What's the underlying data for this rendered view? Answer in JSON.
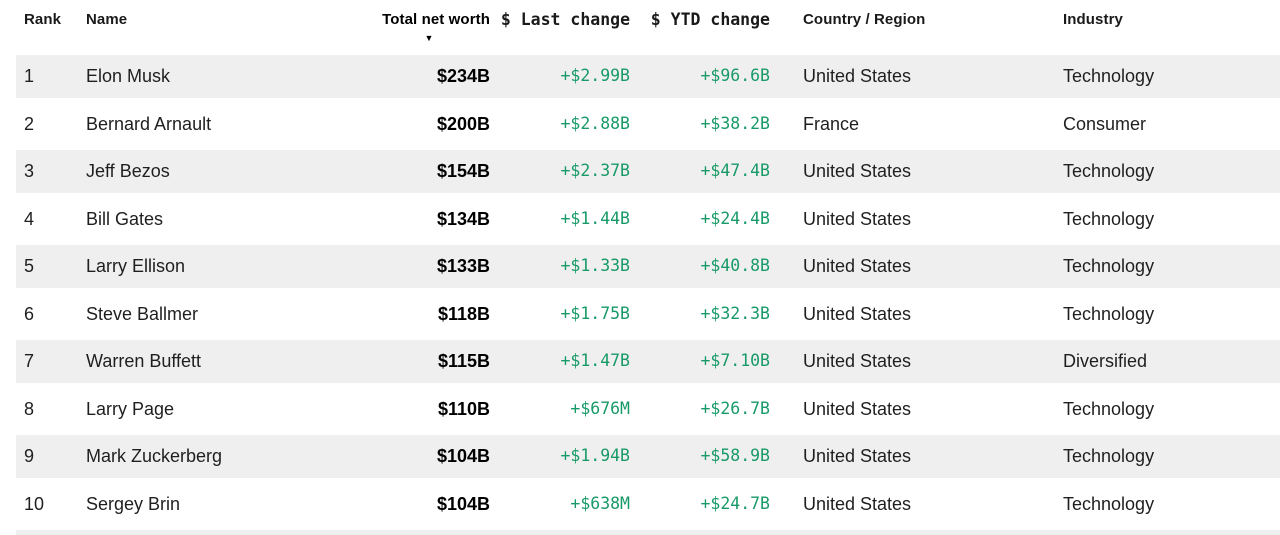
{
  "colors": {
    "positive_change": "#189a68",
    "row_alt_background": "#efefef",
    "header_text": "#000000",
    "body_text": "#1f1f1f"
  },
  "table": {
    "sort_icon": "▼",
    "sorted_column": "Total net worth",
    "columns": [
      {
        "key": "rank",
        "label": "Rank"
      },
      {
        "key": "name",
        "label": "Name"
      },
      {
        "key": "net_worth",
        "label": "Total net worth"
      },
      {
        "key": "last_change",
        "label": "$ Last change"
      },
      {
        "key": "ytd_change",
        "label": "$ YTD change"
      },
      {
        "key": "country",
        "label": "Country / Region"
      },
      {
        "key": "industry",
        "label": "Industry"
      }
    ],
    "rows": [
      {
        "rank": "1",
        "name": "Elon Musk",
        "net_worth": "$234B",
        "last_change": "+$2.99B",
        "ytd_change": "+$96.6B",
        "country": "United States",
        "industry": "Technology"
      },
      {
        "rank": "2",
        "name": "Bernard Arnault",
        "net_worth": "$200B",
        "last_change": "+$2.88B",
        "ytd_change": "+$38.2B",
        "country": "France",
        "industry": "Consumer"
      },
      {
        "rank": "3",
        "name": "Jeff Bezos",
        "net_worth": "$154B",
        "last_change": "+$2.37B",
        "ytd_change": "+$47.4B",
        "country": "United States",
        "industry": "Technology"
      },
      {
        "rank": "4",
        "name": "Bill Gates",
        "net_worth": "$134B",
        "last_change": "+$1.44B",
        "ytd_change": "+$24.4B",
        "country": "United States",
        "industry": "Technology"
      },
      {
        "rank": "5",
        "name": "Larry Ellison",
        "net_worth": "$133B",
        "last_change": "+$1.33B",
        "ytd_change": "+$40.8B",
        "country": "United States",
        "industry": "Technology"
      },
      {
        "rank": "6",
        "name": "Steve Ballmer",
        "net_worth": "$118B",
        "last_change": "+$1.75B",
        "ytd_change": "+$32.3B",
        "country": "United States",
        "industry": "Technology"
      },
      {
        "rank": "7",
        "name": "Warren Buffett",
        "net_worth": "$115B",
        "last_change": "+$1.47B",
        "ytd_change": "+$7.10B",
        "country": "United States",
        "industry": "Diversified"
      },
      {
        "rank": "8",
        "name": "Larry Page",
        "net_worth": "$110B",
        "last_change": "+$676M",
        "ytd_change": "+$26.7B",
        "country": "United States",
        "industry": "Technology"
      },
      {
        "rank": "9",
        "name": "Mark Zuckerberg",
        "net_worth": "$104B",
        "last_change": "+$1.94B",
        "ytd_change": "+$58.9B",
        "country": "United States",
        "industry": "Technology"
      },
      {
        "rank": "10",
        "name": "Sergey Brin",
        "net_worth": "$104B",
        "last_change": "+$638M",
        "ytd_change": "+$24.7B",
        "country": "United States",
        "industry": "Technology"
      }
    ]
  }
}
